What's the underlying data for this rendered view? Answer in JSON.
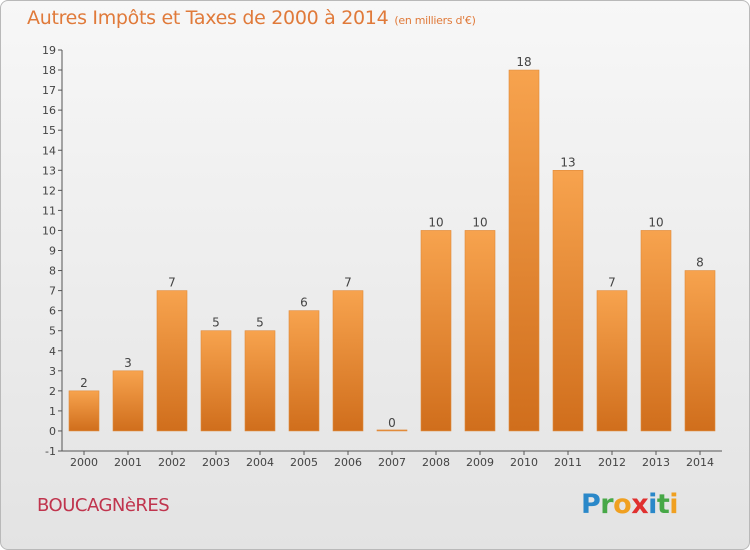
{
  "header": {
    "title": "Autres Impôts et Taxes de 2000 à 2014",
    "subtitle": "(en milliers d'€)"
  },
  "footer": {
    "commune": "BOUCAGNèRES",
    "logo_letters": [
      {
        "ch": "P",
        "color": "#2a88c9"
      },
      {
        "ch": "r",
        "color": "#47a847"
      },
      {
        "ch": "o",
        "color": "#f0a020"
      },
      {
        "ch": "x",
        "color": "#e0302f"
      },
      {
        "ch": "i",
        "color": "#2a88c9"
      },
      {
        "ch": "t",
        "color": "#47a847"
      },
      {
        "ch": "i",
        "color": "#f0a020"
      }
    ]
  },
  "chart_data": {
    "type": "bar",
    "categories": [
      "2000",
      "2001",
      "2002",
      "2003",
      "2004",
      "2005",
      "2006",
      "2007",
      "2008",
      "2009",
      "2010",
      "2011",
      "2012",
      "2013",
      "2014"
    ],
    "values": [
      2,
      3,
      7,
      5,
      5,
      6,
      7,
      0,
      10,
      10,
      18,
      13,
      7,
      10,
      8
    ],
    "ylim": [
      -1,
      19
    ],
    "yticks": [
      "-1",
      "0",
      "1",
      "2",
      "3",
      "4",
      "5",
      "6",
      "7",
      "8",
      "9",
      "10",
      "11",
      "12",
      "13",
      "14",
      "15",
      "16",
      "17",
      "18",
      "19"
    ],
    "grid": false,
    "bar_color_top": "#f7a34e",
    "bar_color_bottom": "#d06e1c"
  }
}
